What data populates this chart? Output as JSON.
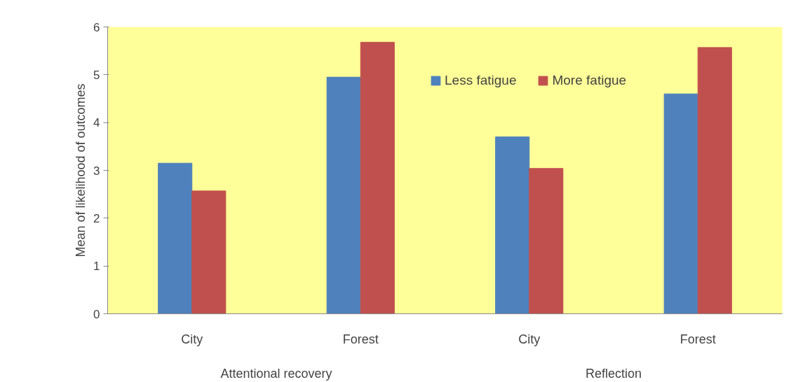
{
  "chart_data": {
    "type": "bar",
    "ylabel": "Mean of likelihood of outcomes",
    "categories": [
      "City",
      "Forest",
      "City",
      "Forest"
    ],
    "annotations": [
      "Attentional recovery",
      "Reflection"
    ],
    "series": [
      {
        "name": "Less fatigue",
        "color": "#4f81bd",
        "values": [
          3.15,
          4.95,
          3.7,
          4.6
        ]
      },
      {
        "name": "More fatigue",
        "color": "#c0504d",
        "values": [
          2.57,
          5.68,
          3.04,
          5.57
        ]
      }
    ],
    "ylim": [
      0,
      6
    ],
    "yticks": [
      0,
      1,
      2,
      3,
      4,
      5,
      6
    ],
    "grid": false,
    "legend": "top right"
  }
}
